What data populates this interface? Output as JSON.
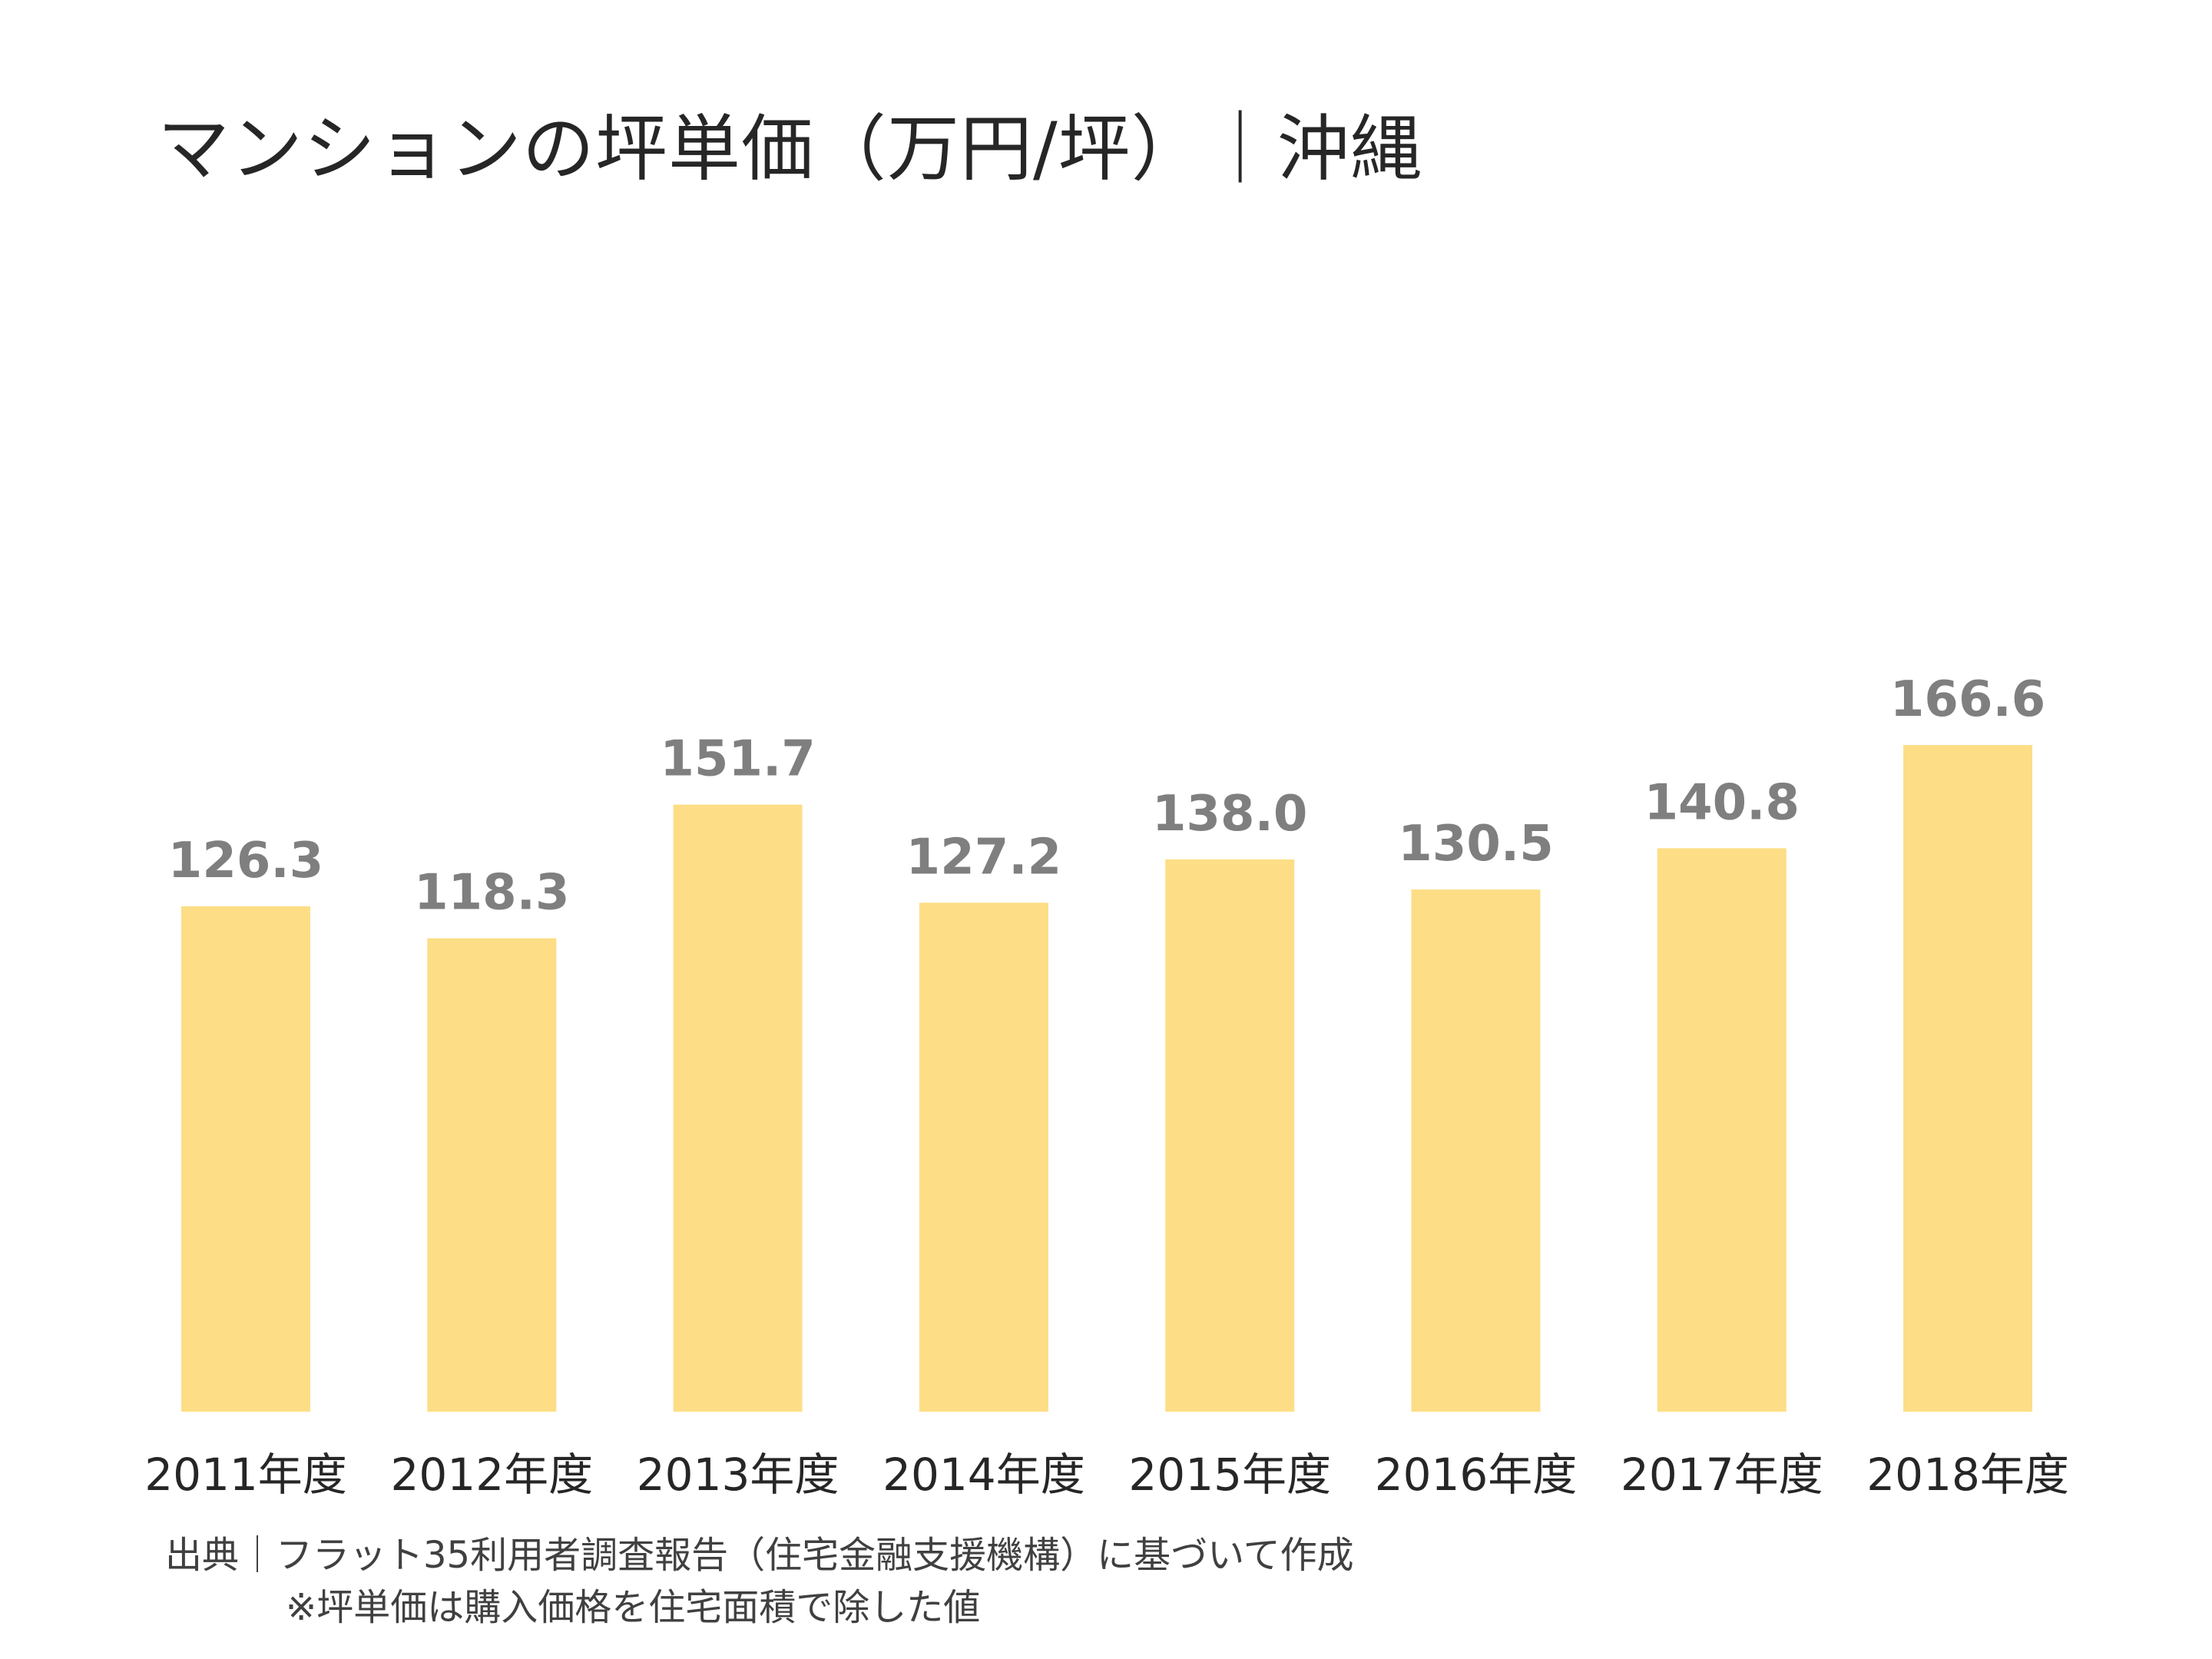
{
  "chart_data": {
    "type": "bar",
    "title": "マンションの坪単価（万円/坪）｜沖縄",
    "categories": [
      "2011年度",
      "2012年度",
      "2013年度",
      "2014年度",
      "2015年度",
      "2016年度",
      "2017年度",
      "2018年度"
    ],
    "values": [
      126.3,
      118.3,
      151.7,
      127.2,
      138.0,
      130.5,
      140.8,
      166.6
    ],
    "value_labels": [
      "126.3",
      "118.3",
      "151.7",
      "127.2",
      "138.0",
      "130.5",
      "140.8",
      "166.6"
    ],
    "xlabel": "",
    "ylabel": "",
    "ylim": [
      0,
      166.6
    ],
    "grid": false,
    "legend": "none",
    "colors": {
      "bar": "#fdde86",
      "value_label": "#7f7f7f",
      "tick_label": "#262626"
    }
  },
  "source_note": "出典｜フラット35利用者調査報告（住宅金融支援機構）に基づいて作成",
  "footnote": "※坪単価は購入価格を住宅面積で除した値"
}
